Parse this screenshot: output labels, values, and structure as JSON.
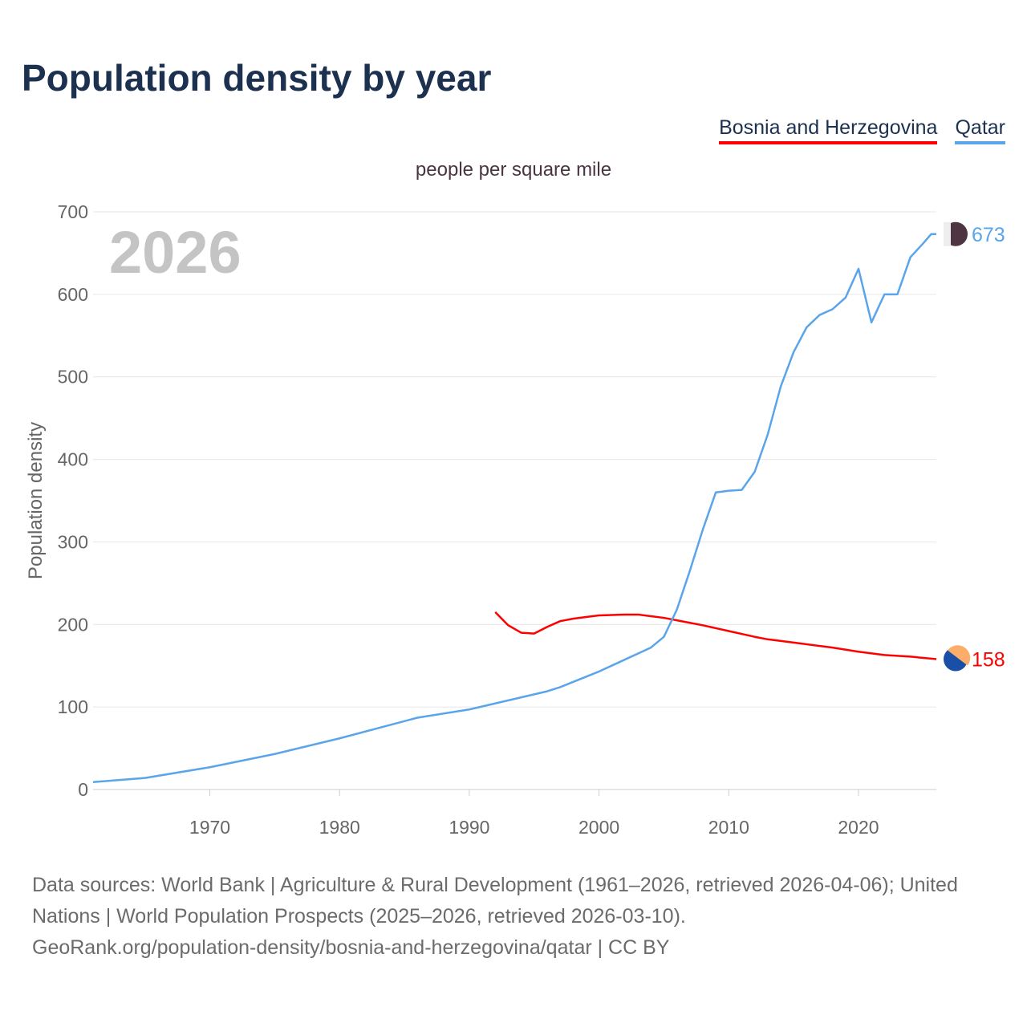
{
  "title": "Population density by year",
  "subtitle": "people per square mile",
  "footer": {
    "line1": "Data sources: World Bank | Agriculture & Rural Development (1961–2026, retrieved 2026-04-06); United Nations | World Population Prospects (2025–2026, retrieved 2026-03-10).",
    "line2": "GeoRank.org/population-density/bosnia-and-herzegovina/qatar | CC BY"
  },
  "chart_data": {
    "type": "line",
    "title": "Population density by year",
    "ylabel": "Population density",
    "xlabel": "",
    "year_label": "2026",
    "xlim": [
      1961,
      2026
    ],
    "ylim": [
      0,
      700
    ],
    "yticks": [
      0,
      100,
      200,
      300,
      400,
      500,
      600,
      700
    ],
    "xticks": [
      1970,
      1980,
      1990,
      2000,
      2010,
      2020
    ],
    "grid": true,
    "legend_position": "top-right",
    "series": [
      {
        "name": "Bosnia and Herzegovina",
        "color": "#ff0000",
        "end_label": "158",
        "x": [
          1992,
          1993,
          1994,
          1995,
          1996,
          1997,
          1998,
          1999,
          2000,
          2002,
          2003,
          2004,
          2005,
          2006,
          2007,
          2008,
          2010,
          2012,
          2013,
          2015,
          2018,
          2020,
          2022,
          2024,
          2026
        ],
        "y": [
          215,
          199,
          190,
          189,
          197,
          204,
          207,
          209,
          211,
          212,
          212,
          210,
          208,
          205,
          202,
          199,
          192,
          185,
          182,
          178,
          172,
          167,
          163,
          161,
          158
        ]
      },
      {
        "name": "Qatar",
        "color": "#5aa5ea",
        "end_label": "673",
        "x": [
          1961,
          1965,
          1970,
          1975,
          1980,
          1986,
          1990,
          1996,
          1997,
          2000,
          2004,
          2005,
          2006,
          2007,
          2008,
          2009,
          2010,
          2011,
          2012,
          2013,
          2014,
          2015,
          2016,
          2017,
          2018,
          2019,
          2020,
          2021,
          2022,
          2023,
          2024,
          2025,
          2025.6,
          2026
        ],
        "y": [
          9,
          14,
          27,
          43,
          62,
          87,
          97,
          119,
          124,
          143,
          172,
          185,
          218,
          265,
          315,
          360,
          362,
          363,
          385,
          430,
          488,
          530,
          560,
          575,
          582,
          596,
          631,
          566,
          600,
          600,
          645,
          662,
          673,
          673
        ]
      }
    ]
  }
}
